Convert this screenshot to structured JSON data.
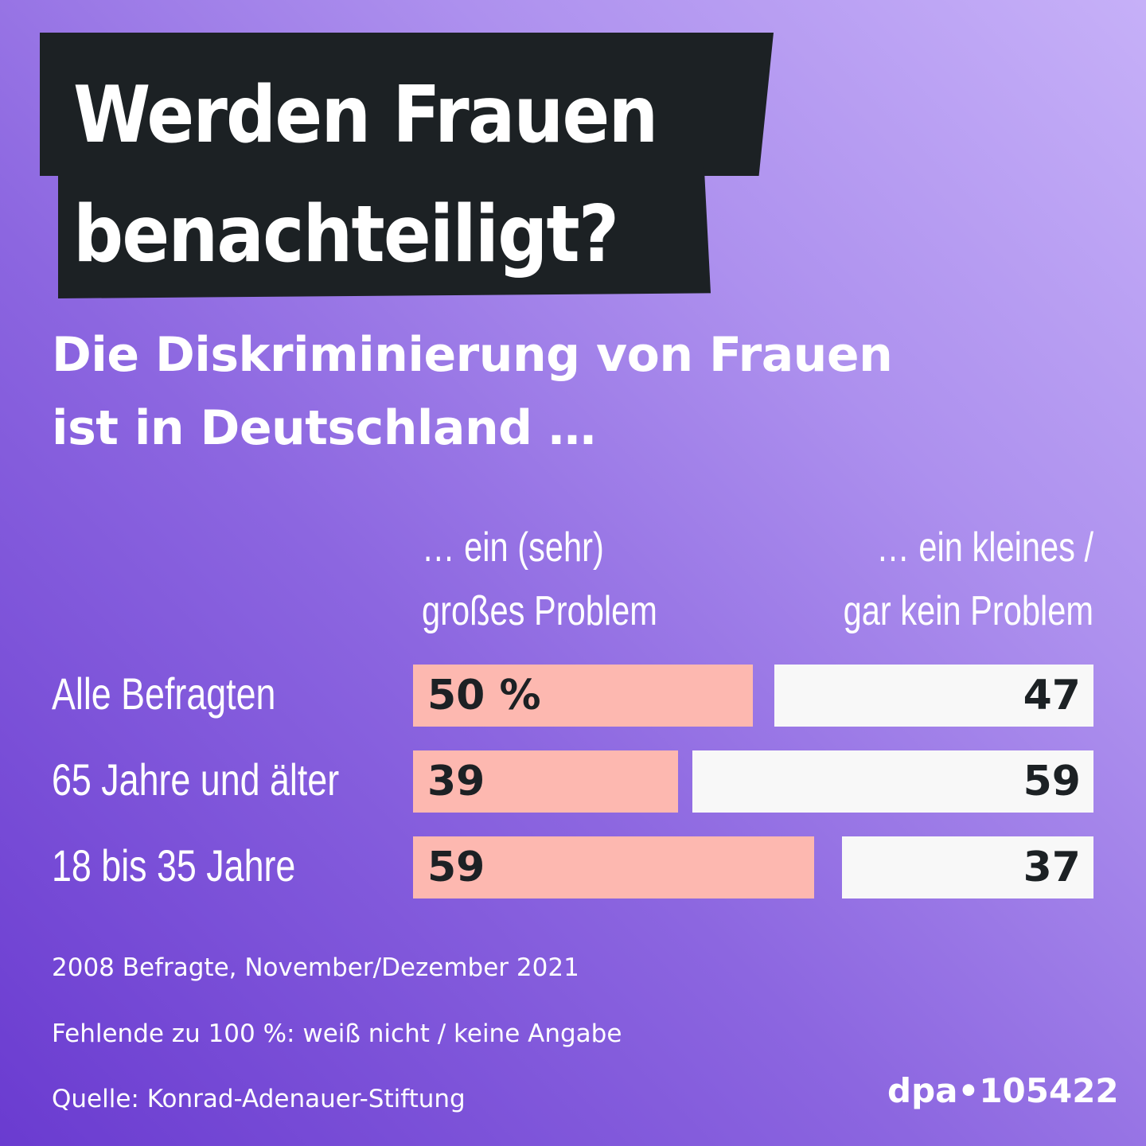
{
  "chart_data": {
    "type": "bar",
    "orientation": "horizontal-diverging",
    "title": "Werden Frauen benachteiligt?",
    "subtitle": "Die Diskriminierung von Frauen ist in Deutschland …",
    "categories": [
      "Alle Befragten",
      "65 Jahre und älter",
      "18 bis 35 Jahre"
    ],
    "series": [
      {
        "name": "… ein (sehr) großes Problem",
        "values": [
          50,
          39,
          59
        ],
        "labels": [
          "50 %",
          "39",
          "59"
        ],
        "color": "#fdb8b0"
      },
      {
        "name": "… ein kleines / gar kein Problem",
        "values": [
          47,
          59,
          37
        ],
        "labels": [
          "47",
          "59",
          "37"
        ],
        "color": "#f8f8f8"
      }
    ],
    "unit": "%"
  },
  "header": {
    "title_line1": "Werden Frauen",
    "title_line2": "benachteiligt?",
    "subtitle_line1": "Die Diskriminierung von Frauen",
    "subtitle_line2": "ist in Deutschland …"
  },
  "columns": {
    "left_line1": "… ein (sehr)",
    "left_line2": "großes Problem",
    "right_line1": "… ein kleines /",
    "right_line2": "gar kein Problem"
  },
  "footer": {
    "note1": "2008 Befragte, November/Dezember 2021",
    "note2": "Fehlende zu 100 %: weiß nicht / keine Angabe",
    "source": "Quelle: Konrad-Adenauer-Stiftung",
    "logo": "dpa•105422"
  },
  "colors": {
    "title_box": "#1c2124",
    "left_bar": "#fdb8b0",
    "right_bar": "#f8f8f8"
  }
}
